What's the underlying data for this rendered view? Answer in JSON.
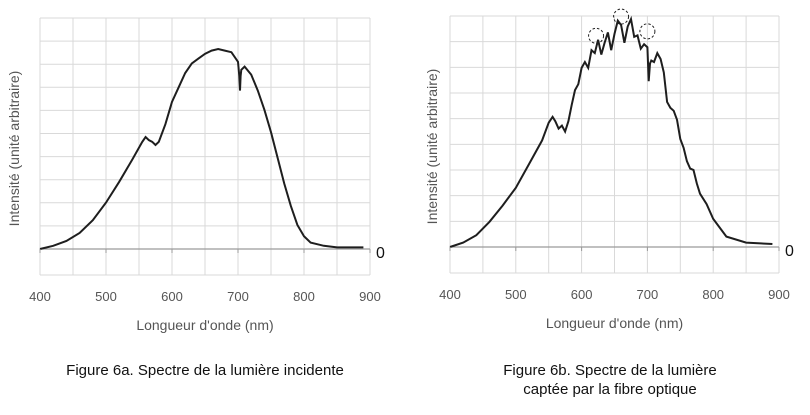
{
  "figures": [
    {
      "caption": "Figure 6a. Spectre de la lumière incidente"
    },
    {
      "caption_line1": "Figure 6b. Spectre de la lumière",
      "caption_line2": "captée par la fibre optique"
    }
  ],
  "chart_data": [
    {
      "type": "line",
      "title": "",
      "xlabel": "Longueur d'onde (nm)",
      "ylabel": "Intensité (unité arbitraire)",
      "xlim": [
        400,
        900
      ],
      "x_ticks": [
        "400",
        "500",
        "600",
        "700",
        "800",
        "900"
      ],
      "y_zero_label": "0",
      "grid": true,
      "series": [
        {
          "x": [
            400,
            420,
            440,
            460,
            480,
            500,
            520,
            540,
            555,
            560,
            565,
            570,
            575,
            580,
            590,
            600,
            610,
            620,
            630,
            640,
            650,
            660,
            670,
            680,
            690,
            700,
            702,
            703,
            704,
            705,
            710,
            720,
            730,
            740,
            750,
            760,
            770,
            780,
            790,
            800,
            810,
            820,
            830,
            850,
            870,
            890
          ],
          "y": [
            0.0,
            0.02,
            0.05,
            0.1,
            0.18,
            0.29,
            0.42,
            0.56,
            0.67,
            0.7,
            0.68,
            0.67,
            0.65,
            0.67,
            0.78,
            0.92,
            1.01,
            1.1,
            1.16,
            1.19,
            1.22,
            1.24,
            1.25,
            1.24,
            1.23,
            1.17,
            1.08,
            0.99,
            1.08,
            1.12,
            1.14,
            1.09,
            0.99,
            0.87,
            0.73,
            0.57,
            0.41,
            0.27,
            0.15,
            0.08,
            0.04,
            0.03,
            0.02,
            0.01,
            0.01,
            0.01
          ]
        }
      ]
    },
    {
      "type": "line",
      "title": "",
      "xlabel": "Longueur d'onde (nm)",
      "ylabel": "Intensité (unité arbitraire)",
      "xlim": [
        400,
        900
      ],
      "x_ticks": [
        "400",
        "500",
        "600",
        "700",
        "800",
        "900"
      ],
      "y_zero_label": "0",
      "grid": true,
      "series": [
        {
          "x": [
            400,
            420,
            440,
            460,
            480,
            500,
            520,
            540,
            550,
            556,
            560,
            565,
            570,
            575,
            580,
            585,
            590,
            595,
            600,
            605,
            610,
            615,
            620,
            625,
            630,
            635,
            640,
            645,
            650,
            655,
            660,
            665,
            670,
            675,
            680,
            685,
            690,
            695,
            700,
            702,
            704,
            706,
            710,
            715,
            720,
            725,
            730,
            735,
            740,
            745,
            750,
            755,
            760,
            765,
            770,
            775,
            780,
            790,
            800,
            820,
            850,
            890
          ],
          "y": [
            0.0,
            0.03,
            0.08,
            0.17,
            0.28,
            0.4,
            0.56,
            0.72,
            0.84,
            0.88,
            0.85,
            0.8,
            0.82,
            0.78,
            0.85,
            0.96,
            1.06,
            1.1,
            1.21,
            1.25,
            1.21,
            1.33,
            1.31,
            1.4,
            1.3,
            1.38,
            1.45,
            1.33,
            1.44,
            1.53,
            1.5,
            1.38,
            1.49,
            1.54,
            1.42,
            1.43,
            1.34,
            1.37,
            1.35,
            1.12,
            1.24,
            1.26,
            1.25,
            1.31,
            1.27,
            1.18,
            0.98,
            0.94,
            0.92,
            0.86,
            0.73,
            0.67,
            0.58,
            0.53,
            0.52,
            0.43,
            0.36,
            0.29,
            0.19,
            0.07,
            0.03,
            0.02
          ]
        }
      ],
      "annotations": [
        {
          "type": "dashed-circle",
          "x": 622,
          "y": 1.4
        },
        {
          "type": "dashed-circle",
          "x": 660,
          "y": 1.53
        },
        {
          "type": "dashed-circle",
          "x": 700,
          "y": 1.43
        }
      ]
    }
  ]
}
